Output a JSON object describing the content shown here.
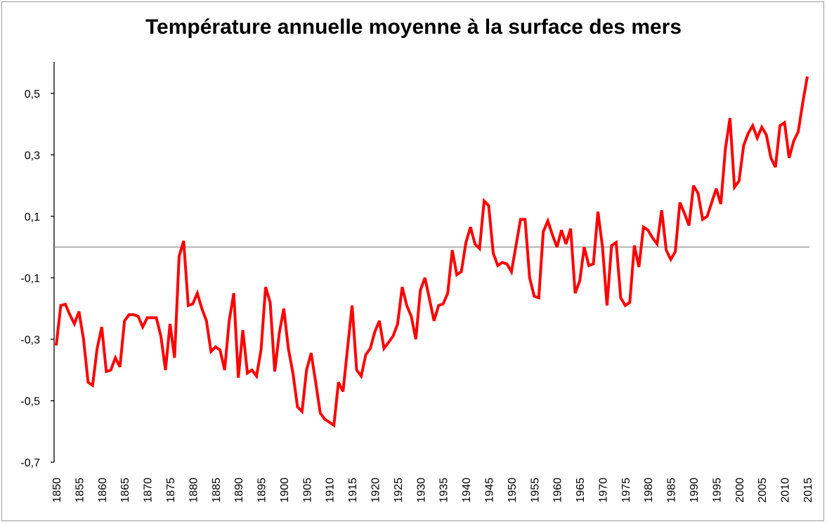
{
  "chart_data": {
    "type": "line",
    "title": "Température annuelle moyenne à la surface des mers",
    "xlabel": "",
    "ylabel": "",
    "ylim": [
      -0.7,
      0.6
    ],
    "yticks": [
      -0.7,
      -0.5,
      -0.3,
      -0.1,
      0.1,
      0.3,
      0.5
    ],
    "ytick_labels": [
      "-0,7",
      "-0,5",
      "-0,3",
      "-0,1",
      "0,1",
      "0,3",
      "0,5"
    ],
    "xlim": [
      1850,
      2015
    ],
    "xtick_labels": [
      "1850",
      "1855",
      "1860",
      "1865",
      "1870",
      "1875",
      "1880",
      "1885",
      "1890",
      "1895",
      "1900",
      "1905",
      "1910",
      "1915",
      "1920",
      "1925",
      "1930",
      "1935",
      "1940",
      "1945",
      "1950",
      "1955",
      "1960",
      "1965",
      "1970",
      "1975",
      "1980",
      "1985",
      "1990",
      "1995",
      "2000",
      "2005",
      "2010",
      "2015"
    ],
    "reference_line": 0,
    "grid": false,
    "legend": "none",
    "series": [
      {
        "name": "Température",
        "color": "#ff0000",
        "x_start": 1850,
        "values": [
          -0.32,
          -0.19,
          -0.186,
          -0.22,
          -0.25,
          -0.21,
          -0.3,
          -0.44,
          -0.45,
          -0.33,
          -0.26,
          -0.405,
          -0.4,
          -0.36,
          -0.39,
          -0.24,
          -0.22,
          -0.22,
          -0.225,
          -0.26,
          -0.23,
          -0.23,
          -0.23,
          -0.29,
          -0.4,
          -0.25,
          -0.36,
          -0.03,
          0.02,
          -0.19,
          -0.185,
          -0.15,
          -0.2,
          -0.24,
          -0.34,
          -0.325,
          -0.335,
          -0.4,
          -0.24,
          -0.15,
          -0.425,
          -0.27,
          -0.41,
          -0.4,
          -0.42,
          -0.335,
          -0.13,
          -0.18,
          -0.405,
          -0.28,
          -0.2,
          -0.33,
          -0.41,
          -0.52,
          -0.535,
          -0.4,
          -0.345,
          -0.44,
          -0.54,
          -0.56,
          -0.57,
          -0.58,
          -0.44,
          -0.47,
          -0.33,
          -0.19,
          -0.4,
          -0.42,
          -0.35,
          -0.33,
          -0.275,
          -0.24,
          -0.33,
          -0.31,
          -0.29,
          -0.25,
          -0.13,
          -0.19,
          -0.225,
          -0.3,
          -0.14,
          -0.1,
          -0.17,
          -0.24,
          -0.19,
          -0.185,
          -0.15,
          -0.01,
          -0.09,
          -0.08,
          0.015,
          0.065,
          0.01,
          -0.005,
          0.15,
          0.135,
          -0.02,
          -0.06,
          -0.05,
          -0.055,
          -0.08,
          0.005,
          0.09,
          0.09,
          -0.1,
          -0.16,
          -0.165,
          0.05,
          0.085,
          0.04,
          0.0,
          0.055,
          0.01,
          0.06,
          -0.15,
          -0.11,
          0.0,
          -0.06,
          -0.055,
          0.115,
          0.0,
          -0.19,
          0.005,
          0.015,
          -0.165,
          -0.19,
          -0.18,
          0.005,
          -0.065,
          0.065,
          0.055,
          0.03,
          0.01,
          0.12,
          -0.01,
          -0.04,
          -0.015,
          0.145,
          0.11,
          0.07,
          0.2,
          0.175,
          0.09,
          0.1,
          0.145,
          0.19,
          0.14,
          0.32,
          0.42,
          0.195,
          0.215,
          0.33,
          0.37,
          0.395,
          0.355,
          0.39,
          0.365,
          0.29,
          0.26,
          0.395,
          0.405,
          0.29,
          0.345,
          0.375,
          0.47,
          0.555
        ]
      }
    ]
  }
}
